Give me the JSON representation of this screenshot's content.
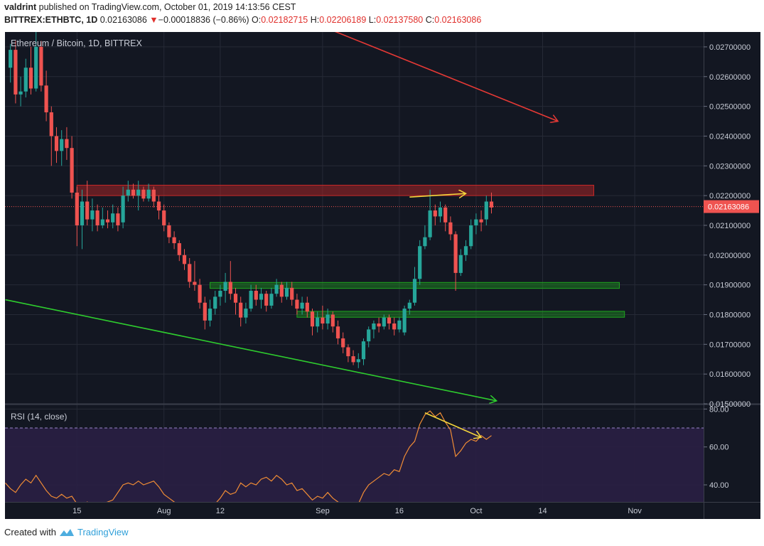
{
  "header": {
    "author": "valdrint",
    "published_text": "published on TradingView.com, October 01, 2019 14:13:56 CEST",
    "symbol": "BITTREX:ETHBTC, 1D",
    "last": "0.02163086",
    "change_arrow": "▼",
    "change": "−0.00018836 (−0.86%)",
    "o_label": "O:",
    "o_value": "0.02182715",
    "h_label": "H:",
    "h_value": "0.02206189",
    "l_label": "L:",
    "l_value": "0.02137580",
    "c_label": "C:",
    "c_value": "0.02163086"
  },
  "footer": {
    "created_with": "Created with",
    "brand": "TradingView"
  },
  "colors": {
    "background": "#131722",
    "grid": "#262a36",
    "up": "#26a69a",
    "down": "#ef5350",
    "price_line": "#ef5350",
    "rsi_line": "#f08c35",
    "rsi_band": "#2a1f44",
    "support_zone": "#1fa51f",
    "resistance_zone": "#c62828",
    "red_trendline": "#e53935",
    "green_trendline": "#2ecc2e",
    "divergence": "#f5d63c"
  },
  "chart_data": [
    {
      "type": "candlestick",
      "title": "Ethereum / Bitcoin, 1D, BITTREX",
      "x_ticks": [
        "15",
        "Aug",
        "12",
        "Sep",
        "16",
        "Oct",
        "14",
        "Nov"
      ],
      "x_tick_days": [
        14,
        31,
        42,
        62,
        77,
        92,
        105,
        123
      ],
      "y_ticks": [
        "0.02700000",
        "0.02600000",
        "0.02500000",
        "0.02400000",
        "0.02300000",
        "0.02200000",
        "0.02100000",
        "0.02000000",
        "0.01900000",
        "0.01800000",
        "0.01700000",
        "0.01600000",
        "0.01500000"
      ],
      "ylim": [
        0.015,
        0.0275
      ],
      "last_price_label": "0.02163086",
      "last_price": 0.02163086,
      "candles": [
        {
          "d": 1,
          "o": 0.0263,
          "h": 0.0271,
          "l": 0.0258,
          "c": 0.0269
        },
        {
          "d": 2,
          "o": 0.0269,
          "h": 0.0272,
          "l": 0.0251,
          "c": 0.0254
        },
        {
          "d": 3,
          "o": 0.0254,
          "h": 0.026,
          "l": 0.025,
          "c": 0.0255
        },
        {
          "d": 4,
          "o": 0.0255,
          "h": 0.0266,
          "l": 0.0253,
          "c": 0.0263
        },
        {
          "d": 5,
          "o": 0.0263,
          "h": 0.027,
          "l": 0.0254,
          "c": 0.0256
        },
        {
          "d": 6,
          "o": 0.0256,
          "h": 0.0275,
          "l": 0.0255,
          "c": 0.027
        },
        {
          "d": 7,
          "o": 0.027,
          "h": 0.0272,
          "l": 0.0255,
          "c": 0.0257
        },
        {
          "d": 8,
          "o": 0.0257,
          "h": 0.0262,
          "l": 0.0245,
          "c": 0.0248
        },
        {
          "d": 9,
          "o": 0.0248,
          "h": 0.025,
          "l": 0.023,
          "c": 0.024
        },
        {
          "d": 10,
          "o": 0.024,
          "h": 0.0243,
          "l": 0.0231,
          "c": 0.0235
        },
        {
          "d": 11,
          "o": 0.0235,
          "h": 0.0242,
          "l": 0.023,
          "c": 0.0239
        },
        {
          "d": 12,
          "o": 0.0239,
          "h": 0.0243,
          "l": 0.0232,
          "c": 0.0236
        },
        {
          "d": 13,
          "o": 0.0236,
          "h": 0.024,
          "l": 0.0219,
          "c": 0.0221
        },
        {
          "d": 14,
          "o": 0.0221,
          "h": 0.0223,
          "l": 0.0203,
          "c": 0.021
        },
        {
          "d": 15,
          "o": 0.021,
          "h": 0.0222,
          "l": 0.0202,
          "c": 0.0218
        },
        {
          "d": 16,
          "o": 0.0218,
          "h": 0.0225,
          "l": 0.021,
          "c": 0.0212
        },
        {
          "d": 17,
          "o": 0.0212,
          "h": 0.0219,
          "l": 0.0208,
          "c": 0.0215
        },
        {
          "d": 18,
          "o": 0.0215,
          "h": 0.0217,
          "l": 0.0208,
          "c": 0.021
        },
        {
          "d": 19,
          "o": 0.021,
          "h": 0.0216,
          "l": 0.0209,
          "c": 0.0212
        },
        {
          "d": 20,
          "o": 0.0212,
          "h": 0.0215,
          "l": 0.0209,
          "c": 0.0211
        },
        {
          "d": 21,
          "o": 0.0211,
          "h": 0.0217,
          "l": 0.0209,
          "c": 0.0214
        },
        {
          "d": 22,
          "o": 0.0214,
          "h": 0.0216,
          "l": 0.0208,
          "c": 0.021
        },
        {
          "d": 23,
          "o": 0.0211,
          "h": 0.0223,
          "l": 0.0209,
          "c": 0.022
        },
        {
          "d": 24,
          "o": 0.022,
          "h": 0.0225,
          "l": 0.0218,
          "c": 0.0222
        },
        {
          "d": 25,
          "o": 0.0222,
          "h": 0.0224,
          "l": 0.0219,
          "c": 0.022
        },
        {
          "d": 26,
          "o": 0.022,
          "h": 0.0225,
          "l": 0.0215,
          "c": 0.0222
        },
        {
          "d": 27,
          "o": 0.0222,
          "h": 0.0223,
          "l": 0.0218,
          "c": 0.0219
        },
        {
          "d": 28,
          "o": 0.0219,
          "h": 0.0224,
          "l": 0.0218,
          "c": 0.0222
        },
        {
          "d": 29,
          "o": 0.0222,
          "h": 0.0223,
          "l": 0.0216,
          "c": 0.0218
        },
        {
          "d": 30,
          "o": 0.0218,
          "h": 0.022,
          "l": 0.0212,
          "c": 0.0215
        },
        {
          "d": 31,
          "o": 0.0215,
          "h": 0.0217,
          "l": 0.0208,
          "c": 0.021
        },
        {
          "d": 32,
          "o": 0.021,
          "h": 0.0211,
          "l": 0.0204,
          "c": 0.0206
        },
        {
          "d": 33,
          "o": 0.0206,
          "h": 0.0208,
          "l": 0.0202,
          "c": 0.0204
        },
        {
          "d": 34,
          "o": 0.0204,
          "h": 0.0205,
          "l": 0.0198,
          "c": 0.02
        },
        {
          "d": 35,
          "o": 0.02,
          "h": 0.0202,
          "l": 0.0195,
          "c": 0.0197
        },
        {
          "d": 36,
          "o": 0.0197,
          "h": 0.0199,
          "l": 0.0189,
          "c": 0.0191
        },
        {
          "d": 37,
          "o": 0.0191,
          "h": 0.0198,
          "l": 0.0188,
          "c": 0.019
        },
        {
          "d": 38,
          "o": 0.019,
          "h": 0.0192,
          "l": 0.0182,
          "c": 0.0184
        },
        {
          "d": 39,
          "o": 0.0184,
          "h": 0.0186,
          "l": 0.0175,
          "c": 0.0178
        },
        {
          "d": 40,
          "o": 0.0178,
          "h": 0.0185,
          "l": 0.0176,
          "c": 0.0182
        },
        {
          "d": 41,
          "o": 0.0182,
          "h": 0.0188,
          "l": 0.018,
          "c": 0.0186
        },
        {
          "d": 42,
          "o": 0.0186,
          "h": 0.019,
          "l": 0.0183,
          "c": 0.0188
        },
        {
          "d": 43,
          "o": 0.0188,
          "h": 0.0194,
          "l": 0.0184,
          "c": 0.0191
        },
        {
          "d": 44,
          "o": 0.0191,
          "h": 0.0198,
          "l": 0.0185,
          "c": 0.0187
        },
        {
          "d": 45,
          "o": 0.0187,
          "h": 0.0189,
          "l": 0.018,
          "c": 0.0184
        },
        {
          "d": 46,
          "o": 0.0184,
          "h": 0.0186,
          "l": 0.0176,
          "c": 0.0179
        },
        {
          "d": 47,
          "o": 0.0179,
          "h": 0.0184,
          "l": 0.0177,
          "c": 0.0182
        },
        {
          "d": 48,
          "o": 0.0182,
          "h": 0.019,
          "l": 0.0181,
          "c": 0.0188
        },
        {
          "d": 49,
          "o": 0.0188,
          "h": 0.019,
          "l": 0.0183,
          "c": 0.0185
        },
        {
          "d": 50,
          "o": 0.0185,
          "h": 0.0189,
          "l": 0.0182,
          "c": 0.0187
        },
        {
          "d": 51,
          "o": 0.0187,
          "h": 0.0188,
          "l": 0.0181,
          "c": 0.0183
        },
        {
          "d": 52,
          "o": 0.0183,
          "h": 0.0189,
          "l": 0.0182,
          "c": 0.0187
        },
        {
          "d": 53,
          "o": 0.0187,
          "h": 0.0192,
          "l": 0.0186,
          "c": 0.019
        },
        {
          "d": 54,
          "o": 0.019,
          "h": 0.0191,
          "l": 0.0184,
          "c": 0.0186
        },
        {
          "d": 55,
          "o": 0.0186,
          "h": 0.0191,
          "l": 0.0185,
          "c": 0.0189
        },
        {
          "d": 56,
          "o": 0.0189,
          "h": 0.0191,
          "l": 0.0183,
          "c": 0.0185
        },
        {
          "d": 57,
          "o": 0.0185,
          "h": 0.0187,
          "l": 0.018,
          "c": 0.0182
        },
        {
          "d": 58,
          "o": 0.0182,
          "h": 0.0186,
          "l": 0.018,
          "c": 0.0184
        },
        {
          "d": 59,
          "o": 0.0184,
          "h": 0.0186,
          "l": 0.0179,
          "c": 0.0181
        },
        {
          "d": 60,
          "o": 0.0181,
          "h": 0.0182,
          "l": 0.0173,
          "c": 0.0176
        },
        {
          "d": 61,
          "o": 0.0176,
          "h": 0.0181,
          "l": 0.0174,
          "c": 0.0179
        },
        {
          "d": 62,
          "o": 0.0179,
          "h": 0.0183,
          "l": 0.0175,
          "c": 0.0177
        },
        {
          "d": 63,
          "o": 0.0177,
          "h": 0.0182,
          "l": 0.0175,
          "c": 0.018
        },
        {
          "d": 64,
          "o": 0.018,
          "h": 0.0181,
          "l": 0.0174,
          "c": 0.0176
        },
        {
          "d": 65,
          "o": 0.0176,
          "h": 0.0178,
          "l": 0.017,
          "c": 0.0172
        },
        {
          "d": 66,
          "o": 0.0172,
          "h": 0.0174,
          "l": 0.0167,
          "c": 0.0169
        },
        {
          "d": 67,
          "o": 0.0169,
          "h": 0.017,
          "l": 0.0164,
          "c": 0.0166
        },
        {
          "d": 68,
          "o": 0.0166,
          "h": 0.0168,
          "l": 0.0163,
          "c": 0.0164
        },
        {
          "d": 69,
          "o": 0.0164,
          "h": 0.0167,
          "l": 0.0162,
          "c": 0.0165
        },
        {
          "d": 70,
          "o": 0.0165,
          "h": 0.0172,
          "l": 0.0163,
          "c": 0.0171
        },
        {
          "d": 71,
          "o": 0.0171,
          "h": 0.0176,
          "l": 0.0169,
          "c": 0.0175
        },
        {
          "d": 72,
          "o": 0.0175,
          "h": 0.0178,
          "l": 0.0172,
          "c": 0.0177
        },
        {
          "d": 73,
          "o": 0.0177,
          "h": 0.0179,
          "l": 0.0174,
          "c": 0.0176
        },
        {
          "d": 74,
          "o": 0.0176,
          "h": 0.018,
          "l": 0.0175,
          "c": 0.0179
        },
        {
          "d": 75,
          "o": 0.0179,
          "h": 0.018,
          "l": 0.0175,
          "c": 0.0177
        },
        {
          "d": 76,
          "o": 0.0177,
          "h": 0.0179,
          "l": 0.0173,
          "c": 0.0175
        },
        {
          "d": 77,
          "o": 0.0175,
          "h": 0.0179,
          "l": 0.0174,
          "c": 0.0178
        },
        {
          "d": 78,
          "o": 0.0174,
          "h": 0.0183,
          "l": 0.0173,
          "c": 0.0182
        },
        {
          "d": 79,
          "o": 0.0182,
          "h": 0.0185,
          "l": 0.018,
          "c": 0.0184
        },
        {
          "d": 80,
          "o": 0.0184,
          "h": 0.0196,
          "l": 0.0183,
          "c": 0.0192
        },
        {
          "d": 81,
          "o": 0.0192,
          "h": 0.0205,
          "l": 0.019,
          "c": 0.0203
        },
        {
          "d": 82,
          "o": 0.0203,
          "h": 0.021,
          "l": 0.0202,
          "c": 0.0206
        },
        {
          "d": 83,
          "o": 0.0206,
          "h": 0.0222,
          "l": 0.0205,
          "c": 0.0215
        },
        {
          "d": 84,
          "o": 0.0215,
          "h": 0.0217,
          "l": 0.021,
          "c": 0.0213
        },
        {
          "d": 85,
          "o": 0.0213,
          "h": 0.0218,
          "l": 0.0211,
          "c": 0.0216
        },
        {
          "d": 86,
          "o": 0.0216,
          "h": 0.0217,
          "l": 0.0208,
          "c": 0.0211
        },
        {
          "d": 87,
          "o": 0.0211,
          "h": 0.0213,
          "l": 0.0205,
          "c": 0.0207
        },
        {
          "d": 88,
          "o": 0.0207,
          "h": 0.0208,
          "l": 0.0188,
          "c": 0.0194
        },
        {
          "d": 89,
          "o": 0.0194,
          "h": 0.0202,
          "l": 0.0193,
          "c": 0.02
        },
        {
          "d": 90,
          "o": 0.02,
          "h": 0.0205,
          "l": 0.0198,
          "c": 0.0203
        },
        {
          "d": 91,
          "o": 0.0203,
          "h": 0.0212,
          "l": 0.0202,
          "c": 0.021
        },
        {
          "d": 92,
          "o": 0.021,
          "h": 0.0214,
          "l": 0.0207,
          "c": 0.0212
        },
        {
          "d": 93,
          "o": 0.0212,
          "h": 0.0215,
          "l": 0.0208,
          "c": 0.0211
        },
        {
          "d": 94,
          "o": 0.0212,
          "h": 0.022,
          "l": 0.021,
          "c": 0.0218
        },
        {
          "d": 95,
          "o": 0.0218,
          "h": 0.0221,
          "l": 0.0214,
          "c": 0.0216
        }
      ],
      "zones": [
        {
          "name": "resistance",
          "from_day": 14,
          "to_day": 115,
          "low": 0.022,
          "high": 0.02235
        },
        {
          "name": "support-upper",
          "from_day": 40,
          "to_day": 120,
          "low": 0.01888,
          "high": 0.01908
        },
        {
          "name": "support-lower",
          "from_day": 57,
          "to_day": 121,
          "low": 0.01791,
          "high": 0.01811
        }
      ],
      "trendlines": [
        {
          "name": "red-trendline",
          "from": {
            "d": 56,
            "p": 0.0281
          },
          "to": {
            "d": 108,
            "p": 0.0245
          },
          "arrow": true
        },
        {
          "name": "green-trendline",
          "from": {
            "d": 0,
            "p": 0.0185
          },
          "to": {
            "d": 96,
            "p": 0.0151
          },
          "arrow": true
        },
        {
          "name": "price-divergence",
          "from": {
            "d": 79,
            "p": 0.02195
          },
          "to": {
            "d": 90,
            "p": 0.02207
          },
          "arrow": true
        }
      ]
    },
    {
      "type": "line",
      "title": "RSI (14, close)",
      "y_ticks": [
        "80.00",
        "60.00",
        "40.00"
      ],
      "ylim": [
        31,
        82
      ],
      "overbought": 70,
      "oversold": 30,
      "x_days": [
        0,
        1,
        2,
        3,
        4,
        5,
        6,
        7,
        8,
        9,
        10,
        11,
        12,
        13,
        14,
        15,
        16,
        17,
        18,
        19,
        20,
        21,
        22,
        23,
        24,
        25,
        26,
        27,
        28,
        29,
        30,
        31,
        32,
        33,
        34,
        35,
        36,
        37,
        38,
        39,
        40,
        41,
        42,
        43,
        44,
        45,
        46,
        47,
        48,
        49,
        50,
        51,
        52,
        53,
        54,
        55,
        56,
        57,
        58,
        59,
        60,
        61,
        62,
        63,
        64,
        65,
        66,
        67,
        68,
        69,
        70,
        71,
        72,
        73,
        74,
        75,
        76,
        77,
        78,
        79,
        80,
        81,
        82,
        83,
        84,
        85,
        86,
        87,
        88,
        89,
        90,
        91,
        92,
        93,
        94,
        95
      ],
      "values": [
        41,
        38,
        36,
        40,
        43,
        41,
        45,
        41,
        37,
        34,
        33,
        35,
        33,
        34,
        30,
        28,
        31,
        29,
        28,
        30,
        31,
        32,
        36,
        40,
        41,
        40,
        42,
        40,
        41,
        42,
        39,
        35,
        33,
        31,
        29,
        28,
        27,
        26,
        25,
        24,
        27,
        30,
        33,
        37,
        35,
        36,
        41,
        39,
        41,
        40,
        43,
        44,
        42,
        45,
        43,
        40,
        41,
        37,
        38,
        35,
        32,
        34,
        33,
        36,
        33,
        31,
        29,
        28,
        29,
        30,
        36,
        40,
        42,
        44,
        46,
        45,
        48,
        47,
        55,
        60,
        63,
        72,
        77,
        79,
        76,
        78,
        73,
        69,
        55,
        58,
        62,
        64,
        63,
        66,
        64,
        66
      ],
      "divergence": {
        "from": {
          "d": 82,
          "v": 78
        },
        "to": {
          "d": 93,
          "v": 65
        }
      }
    }
  ]
}
